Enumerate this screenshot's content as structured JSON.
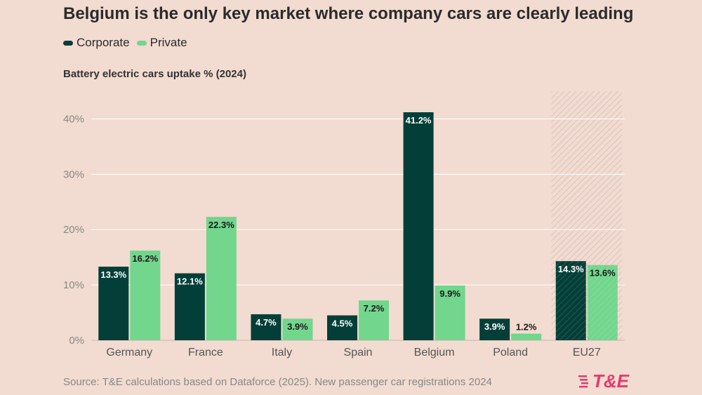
{
  "header": {
    "title": "Belgium is the only key market where company cars are clearly leading"
  },
  "legend": [
    {
      "label": "Corporate",
      "color": "#033f38"
    },
    {
      "label": "Private",
      "color": "#72d68d"
    }
  ],
  "chart_data": {
    "type": "bar",
    "title": "Battery electric cars uptake % (2024)",
    "categories": [
      "Germany",
      "France",
      "Italy",
      "Spain",
      "Belgium",
      "Poland",
      "EU27"
    ],
    "series": [
      {
        "name": "Corporate",
        "color": "#033f38",
        "values": [
          13.3,
          12.1,
          4.7,
          4.5,
          41.2,
          3.9,
          14.3
        ]
      },
      {
        "name": "Private",
        "color": "#72d68d",
        "values": [
          16.2,
          22.3,
          3.9,
          7.2,
          9.9,
          1.2,
          13.6
        ]
      }
    ],
    "ylim": [
      0,
      45
    ],
    "yticks": [
      0,
      10,
      20,
      30,
      40
    ],
    "ytick_labels": [
      "0%",
      "10%",
      "20%",
      "30%",
      "40%"
    ],
    "highlighted_category": "EU27",
    "grid": true,
    "legend_position": "top-left"
  },
  "footer": {
    "source": "Source: T&E calculations based on Dataforce (2025). New passenger car registrations 2024",
    "logo_text": "T&E"
  }
}
